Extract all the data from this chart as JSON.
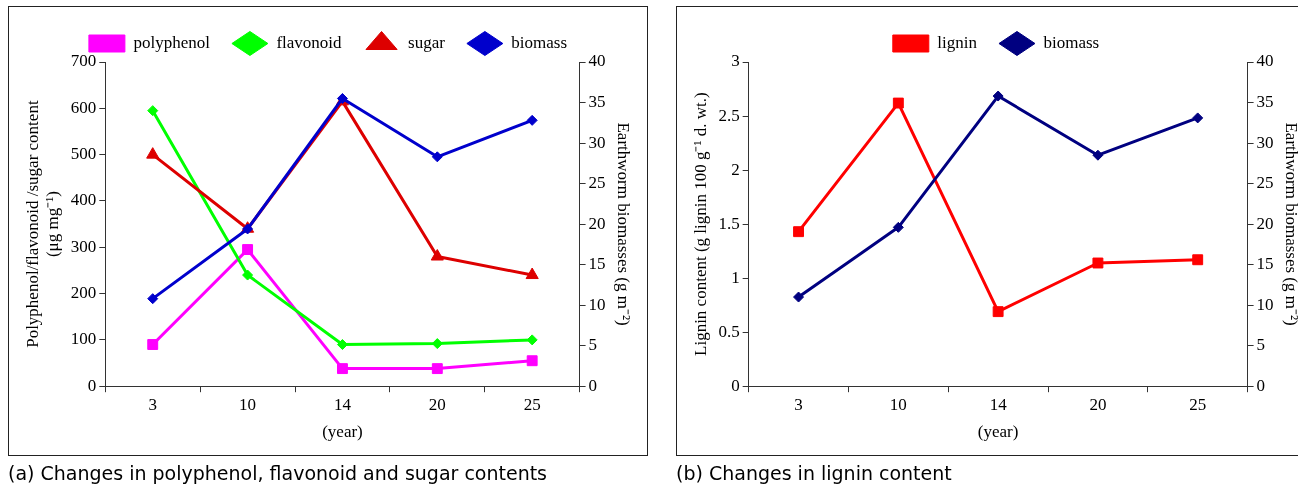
{
  "chart_data": [
    {
      "type": "line",
      "title": "(a) Changes in polyphenol, flavonoid and sugar contents",
      "xlabel": "(year)",
      "ylabel": "Polyphenol/flavonoid /sugar content\n(μg mg⁻¹)",
      "y2label": "Earthworm biomasses (g m⁻²)",
      "categories": [
        "3",
        "10",
        "14",
        "20",
        "25"
      ],
      "series": [
        {
          "name": "polyphenol",
          "color": "#ff00ff",
          "marker": "square",
          "values": [
            90,
            295,
            38,
            38,
            55
          ]
        },
        {
          "name": "flavonoid",
          "color": "#00ff00",
          "marker": "diamond",
          "values": [
            595,
            240,
            90,
            92,
            100
          ]
        },
        {
          "name": "sugar",
          "color": "#dd0000",
          "marker": "triangle",
          "values": [
            500,
            340,
            615,
            280,
            240
          ]
        },
        {
          "name": "biomass",
          "color": "#0000cc",
          "marker": "diamond",
          "axis": "y2",
          "values": [
            10.8,
            19.4,
            35.5,
            28.3,
            32.8
          ]
        }
      ],
      "ylim": [
        0,
        700
      ],
      "yticks": [
        0,
        100,
        200,
        300,
        400,
        500,
        600,
        700
      ],
      "y2lim": [
        0,
        40
      ],
      "y2ticks": [
        0,
        5,
        10,
        15,
        20,
        25,
        30,
        35,
        40
      ],
      "legend": "top",
      "grid": false
    },
    {
      "type": "line",
      "title": "(b) Changes in lignin content",
      "xlabel": "(year)",
      "ylabel": "Lignin content (g lignin 100 g⁻¹ d. wt.)",
      "y2label": "Earthworm biomasses (g m⁻²)",
      "categories": [
        "3",
        "10",
        "14",
        "20",
        "25"
      ],
      "series": [
        {
          "name": "lignin",
          "color": "#ff0000",
          "marker": "square",
          "values": [
            1.43,
            2.62,
            0.69,
            1.14,
            1.17
          ]
        },
        {
          "name": "biomass",
          "color": "#000080",
          "marker": "diamond",
          "axis": "y2",
          "values": [
            11,
            19.6,
            35.8,
            28.5,
            33.1
          ]
        }
      ],
      "ylim": [
        0,
        3
      ],
      "yticks": [
        0,
        0.5,
        1,
        1.5,
        2,
        2.5,
        3
      ],
      "y2lim": [
        0,
        40
      ],
      "y2ticks": [
        0,
        5,
        10,
        15,
        20,
        25,
        30,
        35,
        40
      ],
      "legend": "top",
      "grid": false
    }
  ]
}
